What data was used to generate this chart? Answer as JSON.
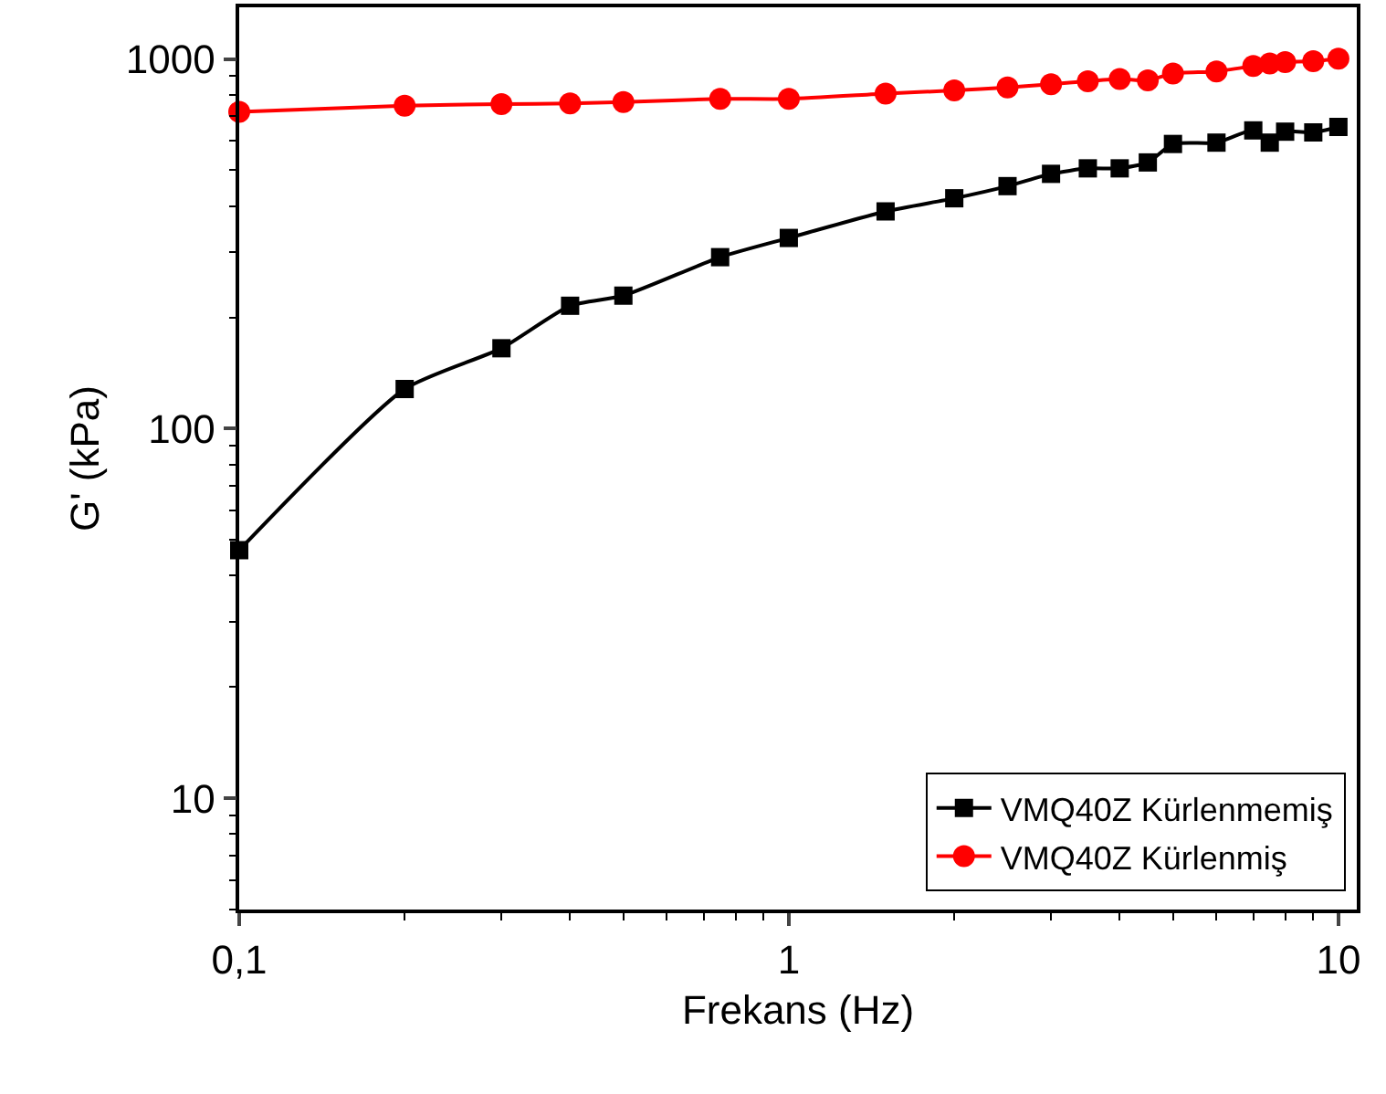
{
  "chart_data": {
    "type": "line",
    "xlabel": "Frekans (Hz)",
    "ylabel": "G' (kPa)",
    "log": "xy",
    "grid": false,
    "legend": "bottom right",
    "line_style": "solid",
    "x": [
      0.1,
      0.2,
      0.3,
      0.4,
      0.5,
      0.75,
      1,
      1.5,
      2,
      2.5,
      3,
      3.5,
      4,
      4.5,
      5,
      6,
      7,
      7.5,
      8,
      9,
      10
    ],
    "xlim": [
      0.1,
      10.8
    ],
    "xticks": [
      {
        "value": 0.1,
        "label": "0,1"
      },
      1,
      10
    ],
    "ylim": [
      5,
      1380
    ],
    "yticks": [
      10,
      100,
      1000
    ],
    "series": [
      {
        "name": "VMQ40Z Kürlenmemiş",
        "color": "#000000",
        "marker": "square",
        "values": [
          46.9,
          128,
          165,
          215,
          229,
          291,
          328,
          387,
          420,
          453,
          489,
          506,
          506,
          525,
          589,
          594,
          641,
          594,
          636,
          633,
          655
        ]
      },
      {
        "name": "VMQ40Z Kürlenmiş",
        "color": "#ff0000",
        "marker": "circle",
        "values": [
          719,
          748,
          755,
          758,
          765,
          780,
          780,
          806,
          822,
          838,
          855,
          871,
          883,
          875,
          914,
          926,
          958,
          972,
          981,
          986,
          1002
        ]
      }
    ]
  }
}
